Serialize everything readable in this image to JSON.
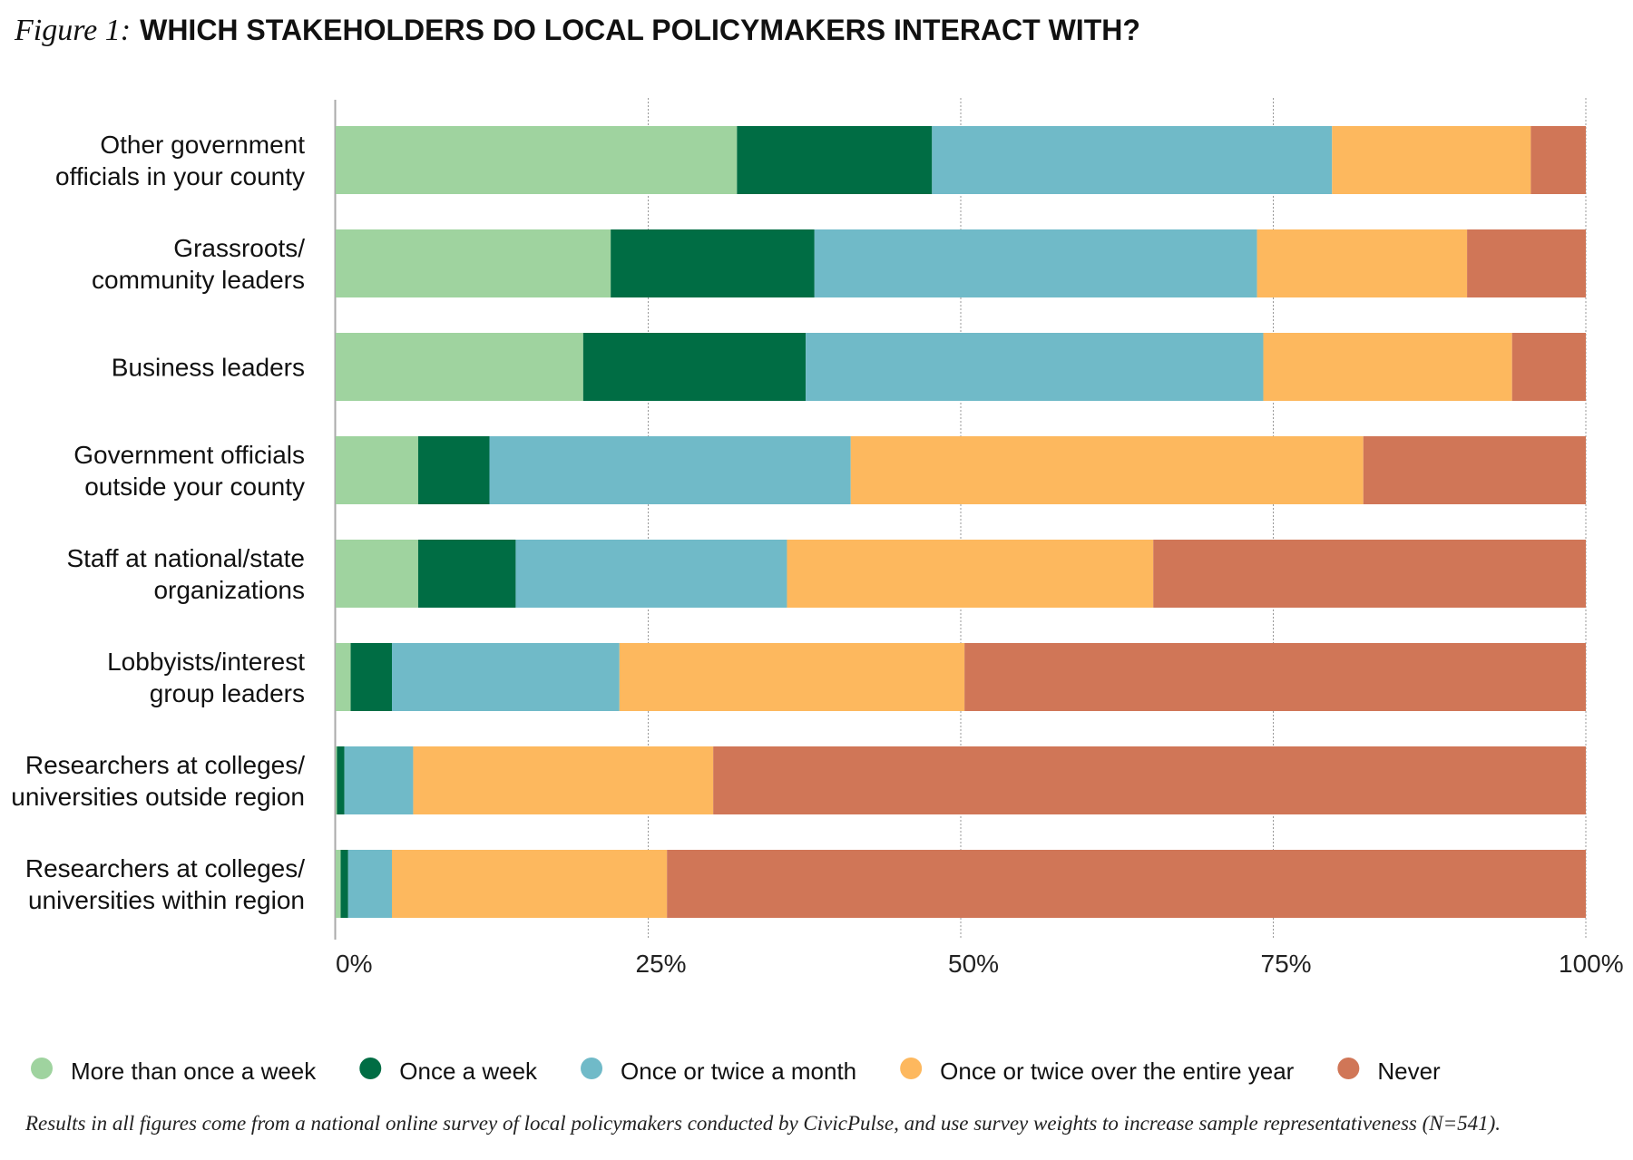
{
  "chart_data": {
    "type": "bar",
    "orientation": "horizontal",
    "stacked": true,
    "figure_label": "Figure 1:",
    "title": "WHICH STAKEHOLDERS DO LOCAL POLICYMAKERS INTERACT WITH?",
    "categories": [
      [
        "Other government",
        "officials in your county"
      ],
      [
        "Grassroots/",
        "community leaders"
      ],
      [
        "Business leaders"
      ],
      [
        "Government officials",
        "outside your county"
      ],
      [
        "Staff at national/state",
        "organizations"
      ],
      [
        "Lobbyists/interest",
        "group leaders"
      ],
      [
        "Researchers at colleges/",
        "universities outside region"
      ],
      [
        "Researchers at colleges/",
        "universities within region"
      ]
    ],
    "series": [
      {
        "name": "More than once a week",
        "color": "#9fd39f",
        "values": [
          32.1,
          22.0,
          19.8,
          6.6,
          6.6,
          1.2,
          0.1,
          0.4
        ]
      },
      {
        "name": "Once a week",
        "color": "#006d44",
        "values": [
          15.6,
          16.3,
          17.8,
          5.7,
          7.8,
          3.3,
          0.6,
          0.6
        ]
      },
      {
        "name": "Once or twice a month",
        "color": "#70bac8",
        "values": [
          32.0,
          35.4,
          36.6,
          28.9,
          21.7,
          18.2,
          5.5,
          3.5
        ]
      },
      {
        "name": "Once or twice over the entire year",
        "color": "#fdb85e",
        "values": [
          15.9,
          16.8,
          19.9,
          41.0,
          29.3,
          27.6,
          24.0,
          22.0
        ]
      },
      {
        "name": "Never",
        "color": "#d07657",
        "values": [
          4.4,
          9.5,
          5.9,
          17.8,
          34.6,
          49.7,
          69.8,
          73.5
        ]
      }
    ],
    "xlim": [
      0,
      100
    ],
    "xticks": [
      "0%",
      "25%",
      "50%",
      "75%",
      "100%"
    ],
    "xtick_values": [
      0,
      25,
      50,
      75,
      100
    ],
    "grid": "vertical dotted",
    "legend_position": "bottom",
    "footnote": "Results in all figures come from a national online survey of local policymakers conducted by CivicPulse, and use survey weights to increase sample representativeness (N=541)."
  }
}
